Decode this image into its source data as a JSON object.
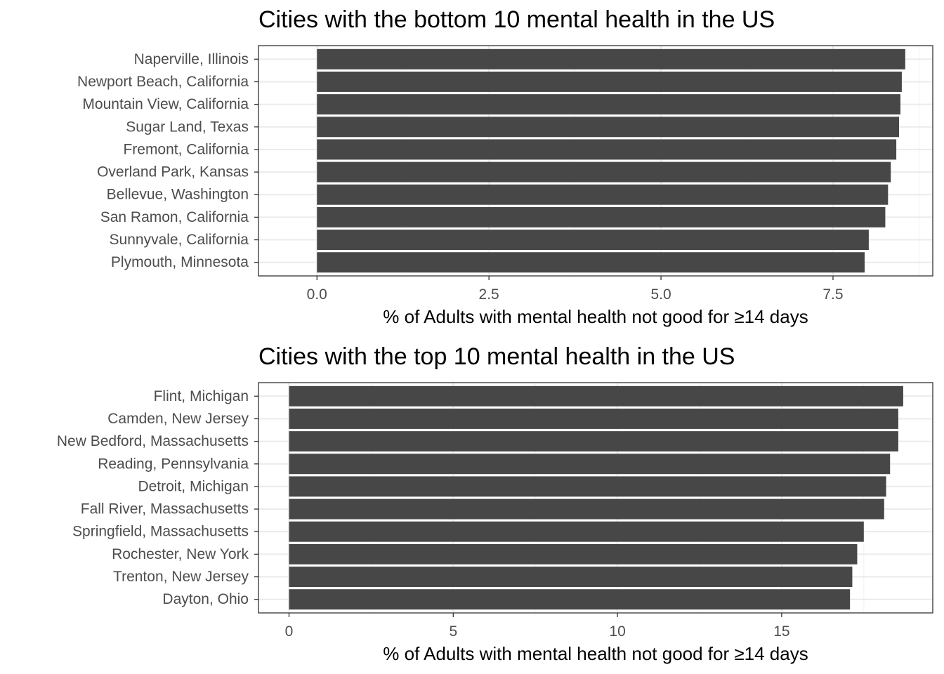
{
  "chart_data": [
    {
      "type": "bar",
      "orientation": "horizontal",
      "title": "Cities with the bottom 10 mental health in the US",
      "xlabel": "% of Adults with mental health not good for ≥14 days",
      "ylabel": "",
      "xlim": [
        -0.85,
        8.95
      ],
      "xticks": [
        "0.0",
        "2.5",
        "5.0",
        "7.5"
      ],
      "xtick_values": [
        0,
        2.5,
        5,
        7.5
      ],
      "categories": [
        "Naperville, Illinois",
        "Newport Beach, California",
        "Mountain View, California",
        "Sugar Land, Texas",
        "Fremont, California",
        "Overland Park, Kansas",
        "Bellevue, Washington",
        "San Ramon, California",
        "Sunnyvale, California",
        "Plymouth, Minnesota"
      ],
      "values": [
        8.55,
        8.5,
        8.48,
        8.46,
        8.42,
        8.34,
        8.3,
        8.26,
        8.02,
        7.96
      ],
      "bar_color": "#474747",
      "grid": true
    },
    {
      "type": "bar",
      "orientation": "horizontal",
      "title": "Cities with the top 10 mental health in the US",
      "xlabel": "% of Adults with mental health not good for ≥14 days",
      "ylabel": "",
      "xlim": [
        -0.93,
        19.6
      ],
      "xticks": [
        "0",
        "5",
        "10",
        "15"
      ],
      "xtick_values": [
        0,
        5,
        10,
        15
      ],
      "categories": [
        "Flint, Michigan",
        "Camden, New Jersey",
        "New Bedford, Massachusetts",
        "Reading, Pennsylvania",
        "Detroit, Michigan",
        "Fall River, Massachusetts",
        "Springfield, Massachusetts",
        "Rochester, New York",
        "Trenton, New Jersey",
        "Dayton, Ohio"
      ],
      "values": [
        18.7,
        18.55,
        18.55,
        18.3,
        18.18,
        18.12,
        17.5,
        17.3,
        17.15,
        17.08
      ],
      "bar_color": "#474747",
      "grid": true
    }
  ]
}
